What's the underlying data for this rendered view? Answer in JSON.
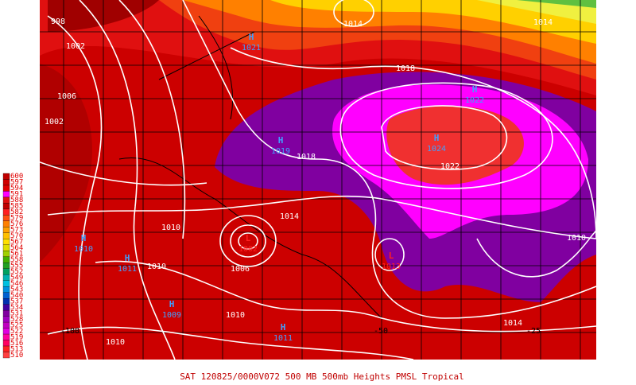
{
  "caption": "SAT 120825/0000V072  500 MB 500mb Heights PMSL Tropical",
  "legend": [
    "600",
    "597",
    "594",
    "591",
    "588",
    "585",
    "582",
    "579",
    "576",
    "573",
    "570",
    "567",
    "564",
    "561",
    "558",
    "555",
    "552",
    "549",
    "546",
    "543",
    "540",
    "537",
    "534",
    "531",
    "528",
    "525",
    "522",
    "519",
    "516",
    "513",
    "510"
  ],
  "centers": [
    {
      "symbol": "H",
      "pressure": "1021"
    },
    {
      "symbol": "H",
      "pressure": "1022"
    },
    {
      "symbol": "H",
      "pressure": "1024"
    },
    {
      "symbol": "H",
      "pressure": "1019"
    },
    {
      "symbol": "H",
      "pressure": "1010"
    },
    {
      "symbol": "H",
      "pressure": "1011"
    },
    {
      "symbol": "H",
      "pressure": "1009"
    },
    {
      "symbol": "H",
      "pressure": "1011"
    },
    {
      "symbol": "L",
      "pressure": "1002"
    },
    {
      "symbol": "L",
      "pressure": "1013"
    }
  ],
  "isobar_labels": [
    "998",
    "1002",
    "1006",
    "1002",
    "1014",
    "1014",
    "1018",
    "1022",
    "1018",
    "1014",
    "1010",
    "1010",
    "1006",
    "1010",
    "1010",
    "1010",
    "1014"
  ],
  "longitudes": [
    "-100",
    "-50",
    "-25"
  ]
}
